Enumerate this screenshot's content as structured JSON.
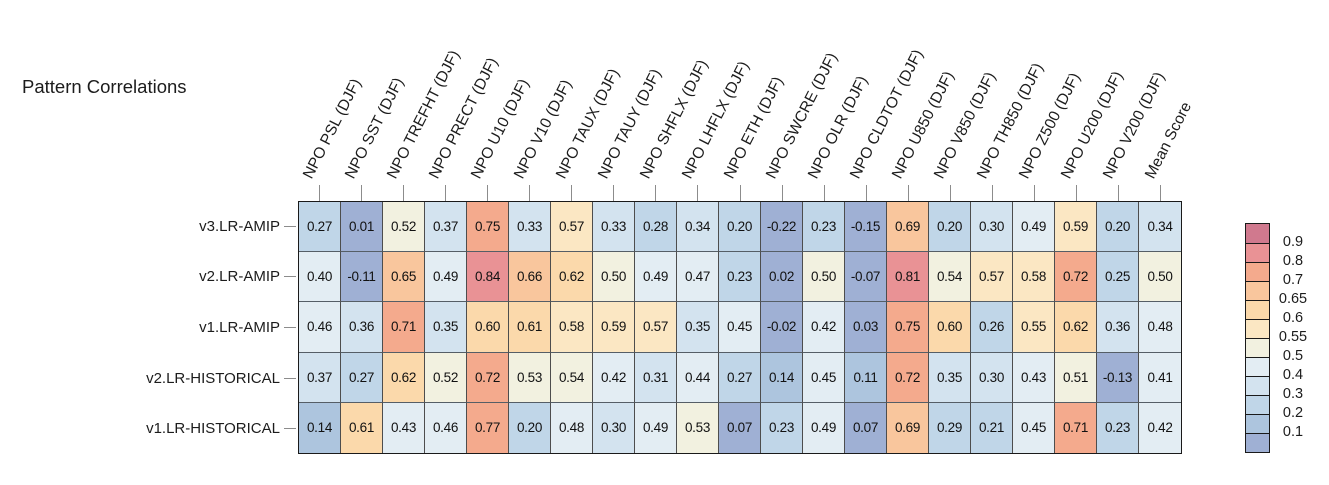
{
  "title": "Pattern Correlations",
  "chart_data": {
    "type": "heatmap",
    "title": "Pattern Correlations",
    "season": "DJF",
    "columns": [
      "NPO PSL (DJF)",
      "NPO SST (DJF)",
      "NPO TREFHT (DJF)",
      "NPO PRECT (DJF)",
      "NPO U10 (DJF)",
      "NPO V10 (DJF)",
      "NPO TAUX (DJF)",
      "NPO TAUY (DJF)",
      "NPO SHFLX (DJF)",
      "NPO LHFLX (DJF)",
      "NPO ETH (DJF)",
      "NPO SWCRE (DJF)",
      "NPO OLR (DJF)",
      "NPO CLDTOT (DJF)",
      "NPO U850 (DJF)",
      "NPO V850 (DJF)",
      "NPO TH850 (DJF)",
      "NPO Z500 (DJF)",
      "NPO U200 (DJF)",
      "NPO V200 (DJF)",
      "Mean Score"
    ],
    "rows": [
      "v3.LR-AMIP",
      "v2.LR-AMIP",
      "v1.LR-AMIP",
      "v2.LR-HISTORICAL",
      "v1.LR-HISTORICAL"
    ],
    "values": [
      [
        0.27,
        0.01,
        0.52,
        0.37,
        0.75,
        0.33,
        0.57,
        0.33,
        0.28,
        0.34,
        0.2,
        -0.22,
        0.23,
        -0.15,
        0.69,
        0.2,
        0.3,
        0.49,
        0.59,
        0.2,
        0.34
      ],
      [
        0.4,
        -0.11,
        0.65,
        0.49,
        0.84,
        0.66,
        0.62,
        0.5,
        0.49,
        0.47,
        0.23,
        0.02,
        0.5,
        -0.07,
        0.81,
        0.54,
        0.57,
        0.58,
        0.72,
        0.25,
        0.5
      ],
      [
        0.46,
        0.36,
        0.71,
        0.35,
        0.6,
        0.61,
        0.58,
        0.59,
        0.57,
        0.35,
        0.45,
        -0.02,
        0.42,
        0.03,
        0.75,
        0.6,
        0.26,
        0.55,
        0.62,
        0.36,
        0.48
      ],
      [
        0.37,
        0.27,
        0.62,
        0.52,
        0.72,
        0.53,
        0.54,
        0.42,
        0.31,
        0.44,
        0.27,
        0.14,
        0.45,
        0.11,
        0.72,
        0.35,
        0.3,
        0.43,
        0.51,
        -0.13,
        0.41
      ],
      [
        0.14,
        0.61,
        0.43,
        0.46,
        0.77,
        0.2,
        0.48,
        0.3,
        0.49,
        0.53,
        0.07,
        0.23,
        0.49,
        0.07,
        0.69,
        0.29,
        0.21,
        0.45,
        0.71,
        0.23,
        0.42
      ]
    ],
    "legend": {
      "position": "right",
      "tick_labels": [
        "0.9",
        "0.8",
        "0.7",
        "0.65",
        "0.6",
        "0.55",
        "0.5",
        "0.4",
        "0.3",
        "0.2",
        "0.1"
      ],
      "thresholds": [
        0.9,
        0.8,
        0.7,
        0.65,
        0.6,
        0.55,
        0.5,
        0.4,
        0.3,
        0.2,
        0.1
      ],
      "colors_top_to_bottom": [
        "#d0798e",
        "#e99295",
        "#f4aa8d",
        "#f9c69d",
        "#fbd9ab",
        "#fbe7c3",
        "#f2f1e0",
        "#e3edf3",
        "#d3e3ef",
        "#c0d6e8",
        "#adc5de",
        "#9fb0d4"
      ]
    },
    "value_format": "2 decimal places",
    "grid": "dark cell borders, black outer frame"
  }
}
